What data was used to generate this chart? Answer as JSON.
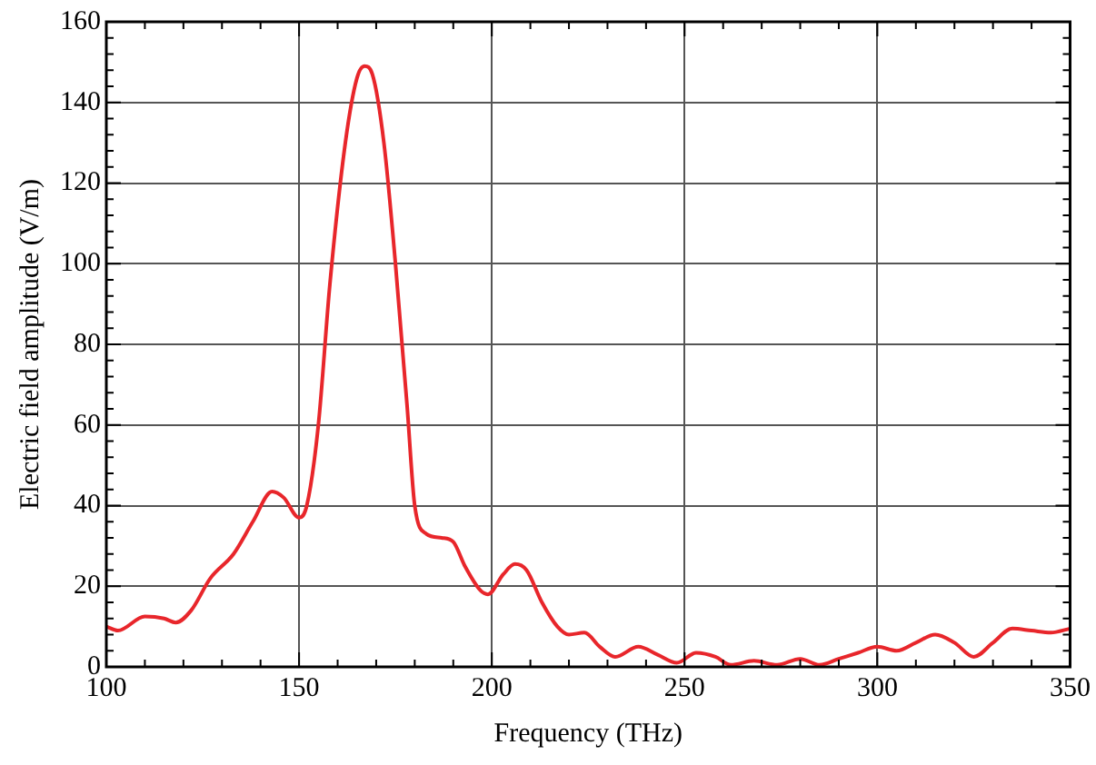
{
  "chart_data": {
    "type": "line",
    "xlabel": "Frequency (THz)",
    "ylabel": "Electric field amplitude (V/m)",
    "xlim": [
      100,
      350
    ],
    "ylim": [
      0,
      160
    ],
    "xticks": [
      100,
      150,
      200,
      250,
      300,
      350
    ],
    "yticks": [
      0,
      20,
      40,
      60,
      80,
      100,
      120,
      140,
      160
    ],
    "grid": true,
    "legend": false,
    "marker": "none",
    "line_style": "solid",
    "series": [
      {
        "color": "#e8262b",
        "x": [
          100,
          103,
          110,
          115,
          118,
          122,
          127,
          133,
          138,
          143,
          146,
          150,
          152,
          155,
          158,
          162,
          165,
          167,
          169,
          172,
          175,
          178,
          180,
          183,
          187,
          190,
          193,
          197,
          199,
          203,
          206,
          209,
          213,
          217,
          220,
          224,
          228,
          232,
          238,
          243,
          248,
          253,
          258,
          262,
          268,
          274,
          280,
          285,
          290,
          295,
          300,
          305,
          310,
          315,
          320,
          325,
          330,
          335,
          340,
          345,
          350
        ],
        "values": [
          10,
          9,
          12.5,
          12,
          11,
          14,
          22,
          28,
          36,
          43.5,
          42,
          37,
          40,
          60,
          95,
          130,
          146,
          149,
          147,
          130,
          100,
          65,
          40,
          33,
          32,
          31,
          25,
          19,
          18,
          23,
          25.5,
          24,
          16,
          10,
          8,
          8.5,
          5,
          2.5,
          5,
          3,
          1,
          3.5,
          2.5,
          0.5,
          1.5,
          0.5,
          2,
          0.5,
          2,
          3.5,
          5,
          4,
          6,
          8,
          6,
          2.5,
          6,
          9.5,
          9,
          8.5,
          9.5
        ]
      }
    ]
  }
}
